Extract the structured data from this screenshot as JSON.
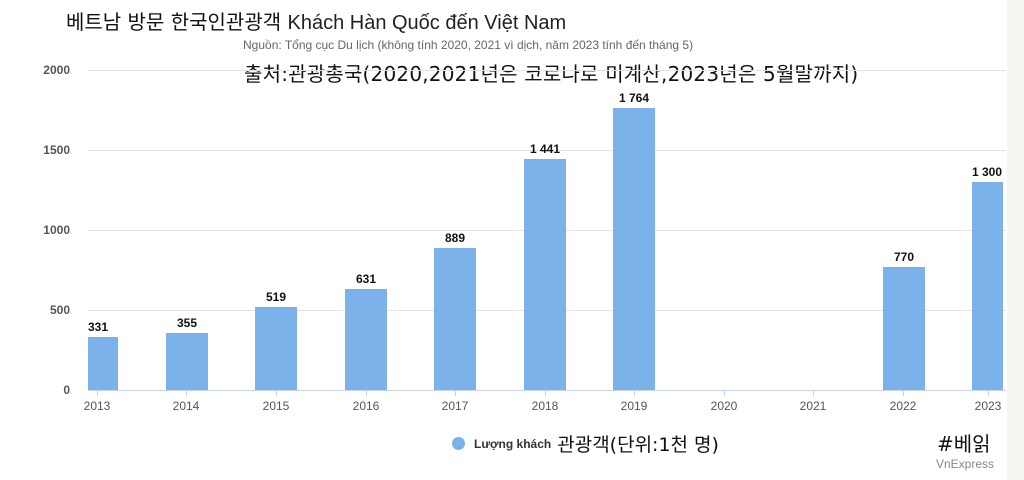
{
  "header": {
    "title_ko": "베트남 방문 한국인관광객",
    "title_vi": "Khách Hàn Quốc đến Việt Nam",
    "subtitle": "Nguồn: Tổng cục Du lịch (không tính 2020, 2021 vì dịch, năm 2023 tính đến tháng 5)",
    "note_ko": "출처:관광총국(2020,2021년은 코로나로 미계산,2023년은 5월말까지)"
  },
  "legend": {
    "series_label": "Lượng khách",
    "series_label_ko": "관광객(단위:1천 명)",
    "color": "#7bb2ea"
  },
  "footer": {
    "hashtag": "#베읽",
    "source": "VnExpress"
  },
  "yaxis": {
    "ticks": [
      "0",
      "500",
      "1000",
      "1500",
      "2000"
    ]
  },
  "bars": [
    {
      "year": "2013",
      "label": "331"
    },
    {
      "year": "2014",
      "label": "355"
    },
    {
      "year": "2015",
      "label": "519"
    },
    {
      "year": "2016",
      "label": "631"
    },
    {
      "year": "2017",
      "label": "889"
    },
    {
      "year": "2018",
      "label": "1 441"
    },
    {
      "year": "2019",
      "label": "1 764"
    },
    {
      "year": "2020",
      "label": ""
    },
    {
      "year": "2021",
      "label": ""
    },
    {
      "year": "2022",
      "label": "770"
    },
    {
      "year": "2023",
      "label": "1 300"
    }
  ],
  "chart_data": {
    "type": "bar",
    "title": "Khách Hàn Quốc đến Việt Nam",
    "subtitle": "Nguồn: Tổng cục Du lịch (không tính 2020, 2021 vì dịch, năm 2023 tính đến tháng 5)",
    "categories": [
      "2013",
      "2014",
      "2015",
      "2016",
      "2017",
      "2018",
      "2019",
      "2020",
      "2021",
      "2022",
      "2023"
    ],
    "series": [
      {
        "name": "Lượng khách",
        "values": [
          331,
          355,
          519,
          631,
          889,
          1441,
          1764,
          null,
          null,
          770,
          1300
        ],
        "color": "#7bb2ea"
      }
    ],
    "xlabel": "",
    "ylabel": "",
    "ylim": [
      0,
      2000
    ],
    "yticks": [
      0,
      500,
      1000,
      1500,
      2000
    ],
    "grid": true,
    "legend_position": "bottom",
    "units": "thousand visitors"
  }
}
